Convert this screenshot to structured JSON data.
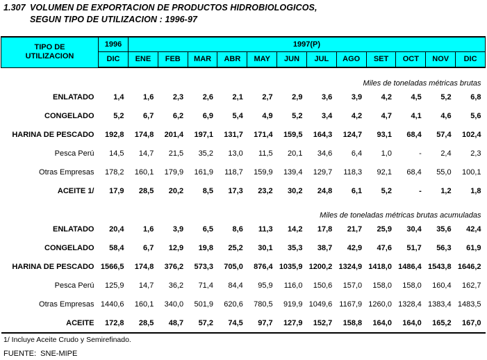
{
  "title": {
    "number": "1.307",
    "line1": "VOLUMEN DE EXPORTACION DE PRODUCTOS HIDROBIOLOGICOS,",
    "line2": "SEGUN TIPO DE UTILIZACION : 1996-97"
  },
  "table": {
    "header": {
      "row_label_line1": "TIPO DE",
      "row_label_line2": "UTILIZACION",
      "year_prev": "1996",
      "year_prev_month": "DIC",
      "year_current": "1997(P)",
      "months": [
        "ENE",
        "FEB",
        "MAR",
        "ABR",
        "MAY",
        "JUN",
        "JUL",
        "AGO",
        "SET",
        "OCT",
        "NOV",
        "DIC"
      ]
    },
    "sections": [
      {
        "caption": "Miles de toneladas métricas brutas",
        "rows": [
          {
            "label": "ENLATADO",
            "bold": true,
            "indent": 0,
            "values": [
              "1,4",
              "1,6",
              "2,3",
              "2,6",
              "2,1",
              "2,7",
              "2,9",
              "3,6",
              "3,9",
              "4,2",
              "4,5",
              "5,2",
              "6,8"
            ]
          },
          {
            "label": "CONGELADO",
            "bold": true,
            "indent": 0,
            "values": [
              "5,2",
              "6,7",
              "6,2",
              "6,9",
              "5,4",
              "4,9",
              "5,2",
              "3,4",
              "4,2",
              "4,7",
              "4,1",
              "4,6",
              "5,6"
            ]
          },
          {
            "label": "HARINA DE PESCADO",
            "bold": true,
            "indent": 0,
            "values": [
              "192,8",
              "174,8",
              "201,4",
              "197,1",
              "131,7",
              "171,4",
              "159,5",
              "164,3",
              "124,7",
              "93,1",
              "68,4",
              "57,4",
              "102,4"
            ]
          },
          {
            "label": "Pesca Perú",
            "bold": false,
            "indent": 2,
            "values": [
              "14,5",
              "14,7",
              "21,5",
              "35,2",
              "13,0",
              "11,5",
              "20,1",
              "34,6",
              "6,4",
              "1,0",
              "-",
              "2,4",
              "2,3"
            ]
          },
          {
            "label": "Otras Empresas",
            "bold": false,
            "indent": 2,
            "values": [
              "178,2",
              "160,1",
              "179,9",
              "161,9",
              "118,7",
              "159,9",
              "139,4",
              "129,7",
              "118,3",
              "92,1",
              "68,4",
              "55,0",
              "100,1"
            ]
          },
          {
            "label": "ACEITE 1/",
            "bold": true,
            "indent": 1,
            "values": [
              "17,9",
              "28,5",
              "20,2",
              "8,5",
              "17,3",
              "23,2",
              "30,2",
              "24,8",
              "6,1",
              "5,2",
              "-",
              "1,2",
              "1,8"
            ]
          }
        ]
      },
      {
        "caption": "Miles de toneladas métricas brutas acumuladas",
        "rows": [
          {
            "label": "ENLATADO",
            "bold": true,
            "indent": 0,
            "values": [
              "20,4",
              "1,6",
              "3,9",
              "6,5",
              "8,6",
              "11,3",
              "14,2",
              "17,8",
              "21,7",
              "25,9",
              "30,4",
              "35,6",
              "42,4"
            ]
          },
          {
            "label": "CONGELADO",
            "bold": true,
            "indent": 0,
            "values": [
              "58,4",
              "6,7",
              "12,9",
              "19,8",
              "25,2",
              "30,1",
              "35,3",
              "38,7",
              "42,9",
              "47,6",
              "51,7",
              "56,3",
              "61,9"
            ]
          },
          {
            "label": "HARINA DE PESCADO",
            "bold": true,
            "indent": 0,
            "values": [
              "1566,5",
              "174,8",
              "376,2",
              "573,3",
              "705,0",
              "876,4",
              "1035,9",
              "1200,2",
              "1324,9",
              "1418,0",
              "1486,4",
              "1543,8",
              "1646,2"
            ]
          },
          {
            "label": "Pesca Perú",
            "bold": false,
            "indent": 2,
            "values": [
              "125,9",
              "14,7",
              "36,2",
              "71,4",
              "84,4",
              "95,9",
              "116,0",
              "150,6",
              "157,0",
              "158,0",
              "158,0",
              "160,4",
              "162,7"
            ]
          },
          {
            "label": "Otras Empresas",
            "bold": false,
            "indent": 2,
            "values": [
              "1440,6",
              "160,1",
              "340,0",
              "501,9",
              "620,6",
              "780,5",
              "919,9",
              "1049,6",
              "1167,9",
              "1260,0",
              "1328,4",
              "1383,4",
              "1483,5"
            ]
          },
          {
            "label": "ACEITE",
            "bold": true,
            "indent": 1,
            "values": [
              "172,8",
              "28,5",
              "48,7",
              "57,2",
              "74,5",
              "97,7",
              "127,9",
              "152,7",
              "158,8",
              "164,0",
              "164,0",
              "165,2",
              "167,0"
            ]
          }
        ]
      }
    ]
  },
  "footnotes": {
    "note1": "1/ Incluye Aceite Crudo y Semirefinado.",
    "source": "FUENTE:  SNE-MIPE"
  },
  "colors": {
    "header_bg": "#00ffff",
    "border": "#000000",
    "text": "#000000",
    "page_bg": "#ffffff"
  }
}
